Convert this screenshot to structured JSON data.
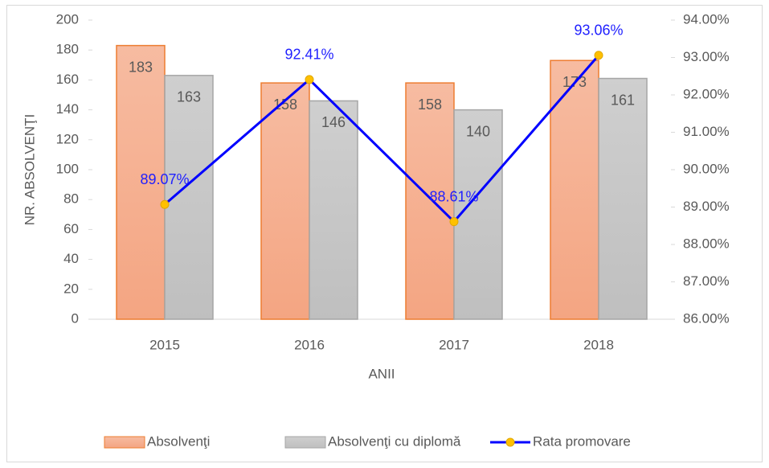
{
  "chart_data": {
    "type": "bar",
    "x_label": "ANII",
    "y_label": "NR. ABSOLVENŢI",
    "categories": [
      "2015",
      "2016",
      "2017",
      "2018"
    ],
    "series": [
      {
        "name": "Absolvenţi",
        "type": "bar",
        "color": "#f4a582",
        "values": [
          183,
          158,
          158,
          173
        ]
      },
      {
        "name": "Absolvenţi cu diplomă",
        "type": "bar",
        "color": "#bfbfbf",
        "values": [
          163,
          146,
          140,
          161
        ]
      },
      {
        "name": "Rata promovare",
        "type": "line",
        "axis": "y2",
        "color": "#0000ff",
        "marker_color": "#ffc000",
        "values": [
          89.07,
          92.41,
          88.61,
          93.06
        ],
        "value_labels": [
          "89.07%",
          "92.41%",
          "88.61%",
          "93.06%"
        ]
      }
    ],
    "ylim": [
      0,
      200
    ],
    "yticks": [
      0,
      20,
      40,
      60,
      80,
      100,
      120,
      140,
      160,
      180,
      200
    ],
    "y2lim": [
      86,
      94
    ],
    "y2ticks": [
      {
        "value": 86,
        "label": "86.00%"
      },
      {
        "value": 87,
        "label": "87.00%"
      },
      {
        "value": 88,
        "label": "88.00%"
      },
      {
        "value": 89,
        "label": "89.00%"
      },
      {
        "value": 90,
        "label": "90.00%"
      },
      {
        "value": 91,
        "label": "91.00%"
      },
      {
        "value": 92,
        "label": "92.00%"
      },
      {
        "value": 93,
        "label": "93.00%"
      },
      {
        "value": 94,
        "label": "94.00%"
      }
    ],
    "grid": false,
    "legend": "bottom"
  }
}
